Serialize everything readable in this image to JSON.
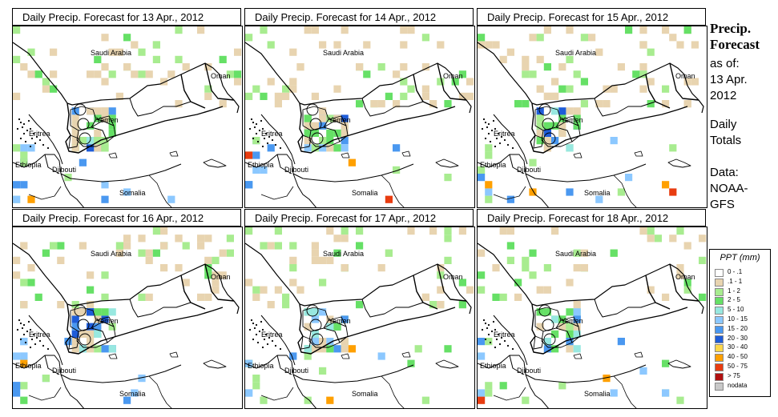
{
  "panels": [
    {
      "title": "Daily Precip. Forecast for  13 Apr., 2012",
      "seed": 11,
      "cells": 50
    },
    {
      "title": "Daily Precip. Forecast for  14 Apr., 2012",
      "seed": 23,
      "cells": 55
    },
    {
      "title": "Daily Precip. Forecast for  15 Apr., 2012",
      "seed": 37,
      "cells": 62
    },
    {
      "title": "Daily Precip. Forecast for  16 Apr., 2012",
      "seed": 41,
      "cells": 60
    },
    {
      "title": "Daily Precip. Forecast for  17 Apr., 2012",
      "seed": 53,
      "cells": 55
    },
    {
      "title": "Daily Precip. Forecast for  18 Apr., 2012",
      "seed": 67,
      "cells": 45
    }
  ],
  "country_labels": [
    "Saudi Arabia",
    "Oman",
    "Yemen",
    "Eritrea",
    "Ethiopia",
    "Djibouti",
    "Somalia"
  ],
  "side": {
    "title_line1": "Precip.",
    "title_line2": "Forecast",
    "asof_line1": "as of:",
    "asof_line2": "13 Apr.",
    "asof_line3": "2012",
    "totals_line1": "Daily",
    "totals_line2": "Totals",
    "data_line1": "Data:",
    "data_line2": "NOAA-",
    "data_line3": "GFS"
  },
  "legend": {
    "title": "PPT (mm)",
    "items": [
      {
        "label": "0 - .1",
        "color": "#ffffff"
      },
      {
        "label": ".1 - 1",
        "color": "#e8d4b0"
      },
      {
        "label": "1 - 2",
        "color": "#a8ec90"
      },
      {
        "label": "2 - 5",
        "color": "#66e066"
      },
      {
        "label": "5 - 10",
        "color": "#98e8e0"
      },
      {
        "label": "10 - 15",
        "color": "#8cc8ff"
      },
      {
        "label": "15 - 20",
        "color": "#4a98f0"
      },
      {
        "label": "20 - 30",
        "color": "#1e5cd8"
      },
      {
        "label": "30 - 40",
        "color": "#ffd84a"
      },
      {
        "label": "40 - 50",
        "color": "#ffa000"
      },
      {
        "label": "50 - 75",
        "color": "#e83c10"
      },
      {
        "label": "> 75",
        "color": "#b01010"
      },
      {
        "label": "nodata",
        "color": "#c8c8c8"
      }
    ]
  },
  "map_colors": {
    "border": "#000000",
    "tan": "#e8d4b0",
    "light_green": "#a8ec90",
    "green": "#66e066",
    "cyan": "#98e8e0",
    "light_blue": "#8cc8ff",
    "blue": "#4a98f0",
    "dark_blue": "#1e5cd8",
    "yellow": "#ffd84a",
    "orange": "#ffa000",
    "red": "#e83c10"
  }
}
